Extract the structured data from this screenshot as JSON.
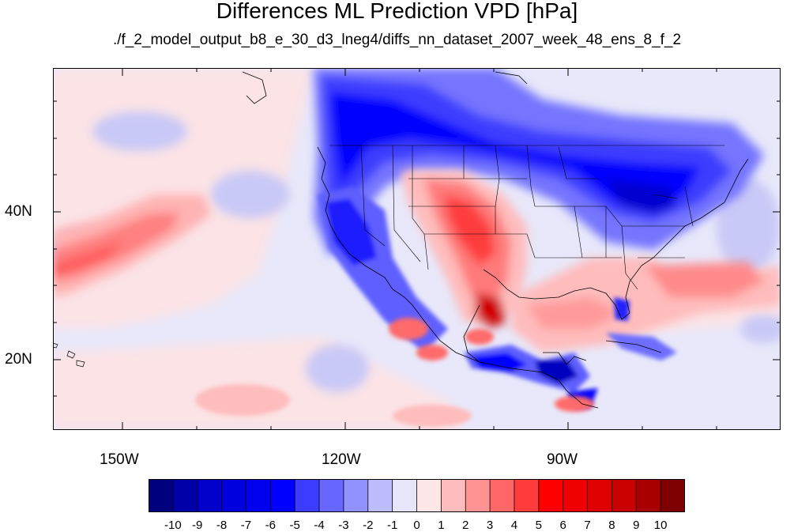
{
  "title": "Differences ML Prediction VPD [hPa]",
  "subtitle": "./f_2_model_output_b8_e_30_d3_lneg4/diffs_nn_dataset_2007_week_48_ens_8_f_2",
  "map": {
    "projection": "cylindrical equidistant",
    "lon_range": [
      -160,
      -62
    ],
    "lat_range": [
      11,
      60
    ],
    "x_ticks": [
      "150W",
      "120W",
      "90W"
    ],
    "y_ticks": [
      "40N",
      "20N"
    ]
  },
  "colorbar": {
    "labels": [
      "-10",
      "-9",
      "-8",
      "-7",
      "-6",
      "-5",
      "-4",
      "-3",
      "-2",
      "-1",
      "0",
      "1",
      "2",
      "3",
      "4",
      "5",
      "6",
      "7",
      "8",
      "9",
      "10"
    ],
    "colors": [
      "#00007f",
      "#0000a8",
      "#0000c8",
      "#0000df",
      "#0000ef",
      "#0000ff",
      "#3c3cff",
      "#6767ff",
      "#9292ff",
      "#bcbcff",
      "#e6e6fb",
      "#fde6e6",
      "#ffbcbc",
      "#ff9292",
      "#ff6767",
      "#ff3c3c",
      "#ff0000",
      "#ef0000",
      "#df0000",
      "#c80000",
      "#a80000",
      "#7f0000"
    ]
  }
}
